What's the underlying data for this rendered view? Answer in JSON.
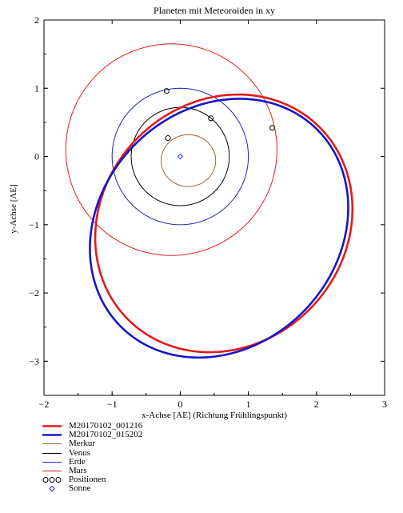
{
  "chart_data": {
    "type": "line",
    "title": "Planeten mit Meteoroiden in xy",
    "xlabel": "x-Achse [AE] (Richtung Frühlingspunkt)",
    "ylabel": "y-Achse [AE]",
    "xlim": [
      -2,
      3
    ],
    "ylim": [
      -3.5,
      2
    ],
    "xticks": [
      -2,
      -1,
      0,
      1,
      2,
      3
    ],
    "yticks": [
      -3,
      -2,
      -1,
      0,
      1,
      2
    ],
    "xtick_labels": [
      "−2",
      "−1",
      "0",
      "1",
      "2",
      "3"
    ],
    "ytick_labels": [
      "−3",
      "−2",
      "−1",
      "0",
      "1",
      "2"
    ],
    "grid": false,
    "legend_position": "below plot",
    "sun": {
      "x": 0,
      "y": 0
    },
    "series": [
      {
        "name": "M20170102_001216",
        "color": "#e31a1c",
        "shape": "ellipse",
        "width": "thick",
        "center": [
          0.64,
          -0.98
        ],
        "semi_axes": [
          1.78,
          1.99
        ],
        "rotation_deg": -45
      },
      {
        "name": "M20170102_015202",
        "color": "#1515c8",
        "shape": "ellipse",
        "width": "thick",
        "center": [
          0.57,
          -1.05
        ],
        "semi_axes": [
          1.74,
          2.04
        ],
        "rotation_deg": -45
      },
      {
        "name": "Merkur",
        "color": "#a0622d",
        "shape": "ellipse",
        "width": "thin",
        "center": [
          0.12,
          -0.06
        ],
        "semi_axes": [
          0.4,
          0.38
        ],
        "rotation_deg": 0
      },
      {
        "name": "Venus",
        "color": "#000000",
        "shape": "circle",
        "width": "thin",
        "center": [
          0,
          0
        ],
        "radius": 0.72
      },
      {
        "name": "Erde",
        "color": "#2222bb",
        "shape": "circle",
        "width": "thin",
        "center": [
          0,
          0
        ],
        "radius": 1.0
      },
      {
        "name": "Mars",
        "color": "#e31a1c",
        "shape": "circle",
        "width": "thin",
        "center": [
          -0.13,
          0.1
        ],
        "radius": 1.55
      }
    ],
    "positions": {
      "name": "Positionen",
      "points": [
        {
          "x": -0.2,
          "y": 0.96
        },
        {
          "x": 0.45,
          "y": 0.56
        },
        {
          "x": -0.18,
          "y": 0.27
        },
        {
          "x": 1.35,
          "y": 0.42
        }
      ]
    },
    "sun_label": "Sonne"
  },
  "legend": [
    {
      "label": "M20170102_001216",
      "kind": "line",
      "color": "#e31a1c",
      "thick": true
    },
    {
      "label": "M20170102_015202",
      "kind": "line",
      "color": "#1515c8",
      "thick": true
    },
    {
      "label": "Merkur",
      "kind": "line",
      "color": "#a0622d",
      "thick": false
    },
    {
      "label": "Venus",
      "kind": "line",
      "color": "#000000",
      "thick": false
    },
    {
      "label": "Erde",
      "kind": "line",
      "color": "#2222bb",
      "thick": false
    },
    {
      "label": "Mars",
      "kind": "line",
      "color": "#e31a1c",
      "thick": false
    },
    {
      "label": "Positionen",
      "kind": "circles",
      "color": "#000000",
      "thick": false
    },
    {
      "label": "Sonne",
      "kind": "diamond",
      "color": "#2222ff",
      "thick": false
    }
  ]
}
